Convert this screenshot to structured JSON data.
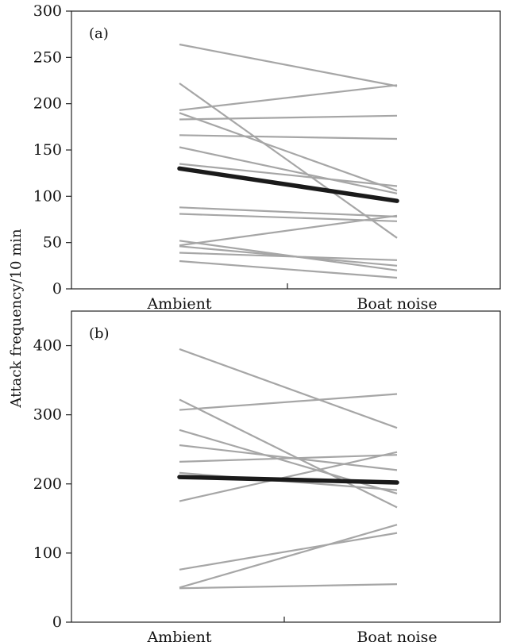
{
  "ylabel": "Attack frequency/10 min",
  "colors": {
    "individual": "#a6a6a6",
    "mean": "#1a1a1a",
    "axis": "#222222"
  },
  "chart_data": [
    {
      "type": "line",
      "panel_label": "(a)",
      "categories": [
        "Ambient",
        "Boat noise"
      ],
      "ylim": [
        0,
        300
      ],
      "yticks": [
        0,
        50,
        100,
        150,
        200,
        250,
        300
      ],
      "grid": false,
      "individual_series": [
        [
          264,
          219
        ],
        [
          222,
          55
        ],
        [
          193,
          220
        ],
        [
          190,
          106
        ],
        [
          183,
          187
        ],
        [
          166,
          162
        ],
        [
          153,
          103
        ],
        [
          135,
          111
        ],
        [
          88,
          78
        ],
        [
          81,
          73
        ],
        [
          52,
          20
        ],
        [
          47,
          79
        ],
        [
          46,
          25
        ],
        [
          39,
          31
        ],
        [
          30,
          12
        ]
      ],
      "mean_series": [
        130,
        95
      ]
    },
    {
      "type": "line",
      "panel_label": "(b)",
      "categories": [
        "Ambient",
        "Boat noise"
      ],
      "ylim": [
        0,
        450
      ],
      "yticks": [
        0,
        100,
        200,
        300,
        400
      ],
      "grid": false,
      "individual_series": [
        [
          395,
          281
        ],
        [
          322,
          166
        ],
        [
          307,
          330
        ],
        [
          278,
          186
        ],
        [
          256,
          220
        ],
        [
          232,
          242
        ],
        [
          216,
          191
        ],
        [
          175,
          246
        ],
        [
          76,
          129
        ],
        [
          50,
          141
        ],
        [
          49,
          55
        ]
      ],
      "mean_series": [
        210,
        202
      ]
    }
  ]
}
